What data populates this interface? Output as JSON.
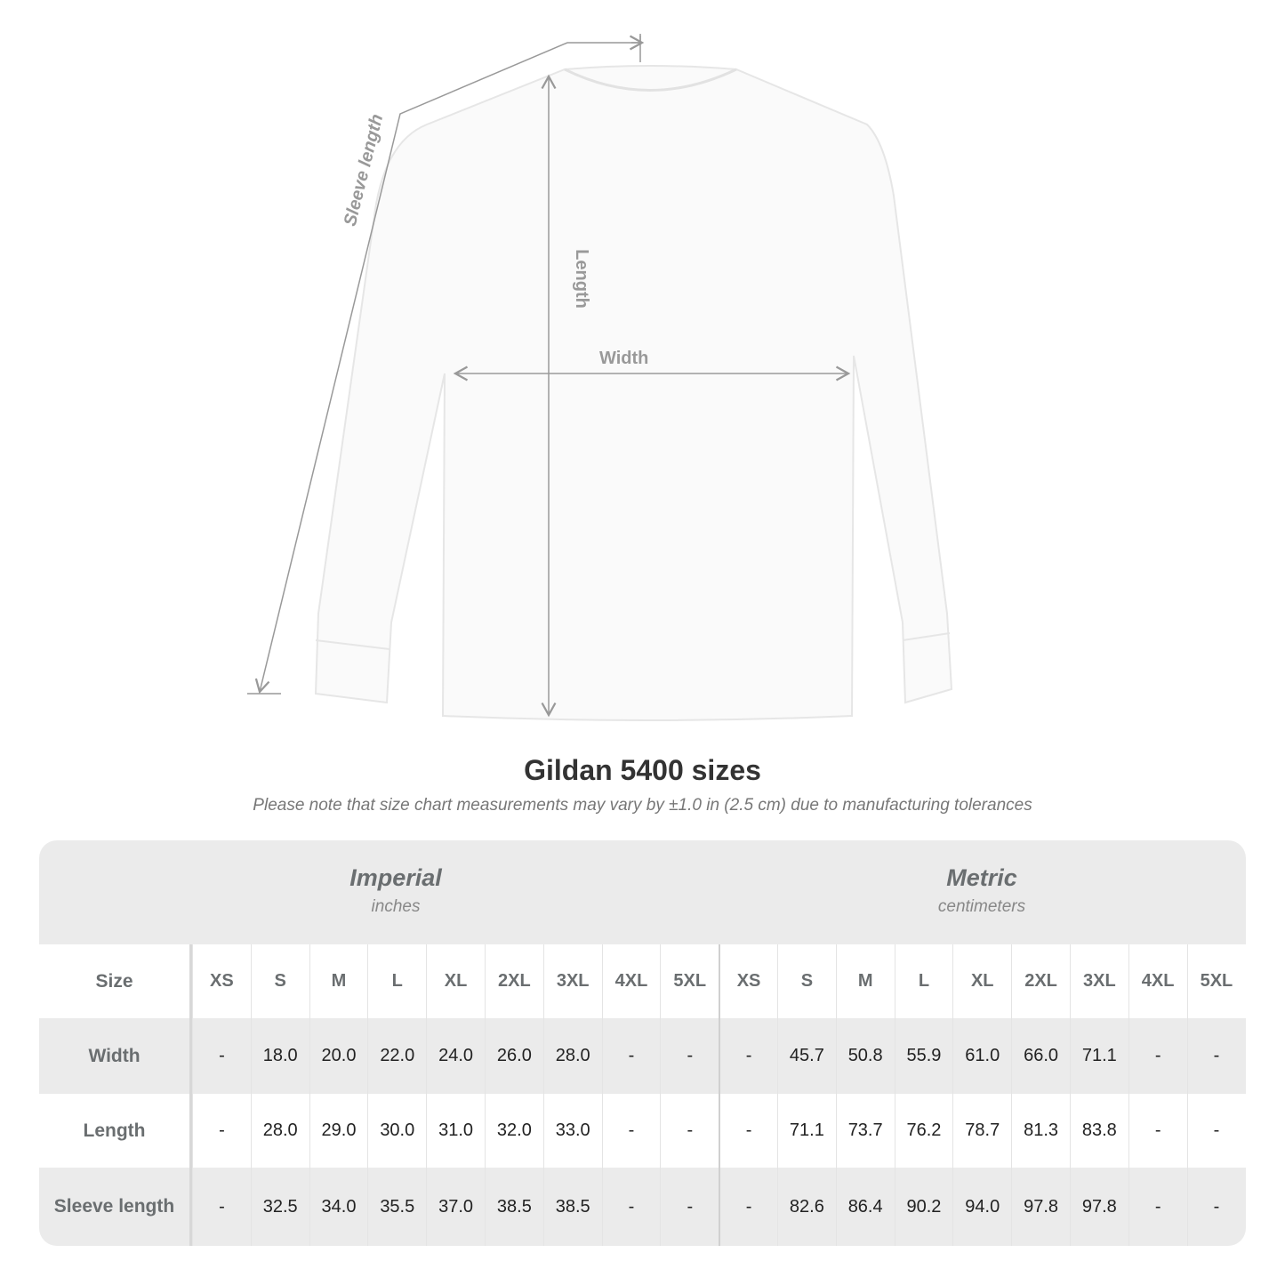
{
  "diagram": {
    "labels": {
      "sleeve": "Sleeve length",
      "length": "Length",
      "width": "Width"
    },
    "line_color": "#999999"
  },
  "title": "Gildan 5400 sizes",
  "note": "Please note that size chart measurements may vary by ±1.0 in (2.5 cm) due to manufacturing tolerances",
  "table": {
    "imperial": {
      "name": "Imperial",
      "unit": "inches"
    },
    "metric": {
      "name": "Metric",
      "unit": "centimeters"
    },
    "size_label": "Size",
    "sizes": [
      "XS",
      "S",
      "M",
      "L",
      "XL",
      "2XL",
      "3XL",
      "4XL",
      "5XL"
    ],
    "rows": [
      {
        "label": "Width",
        "imperial": [
          "-",
          "18.0",
          "20.0",
          "22.0",
          "24.0",
          "26.0",
          "28.0",
          "-",
          "-"
        ],
        "metric": [
          "-",
          "45.7",
          "50.8",
          "55.9",
          "61.0",
          "66.0",
          "71.1",
          "-",
          "-"
        ]
      },
      {
        "label": "Length",
        "imperial": [
          "-",
          "28.0",
          "29.0",
          "30.0",
          "31.0",
          "32.0",
          "33.0",
          "-",
          "-"
        ],
        "metric": [
          "-",
          "71.1",
          "73.7",
          "76.2",
          "78.7",
          "81.3",
          "83.8",
          "-",
          "-"
        ]
      },
      {
        "label": "Sleeve length",
        "imperial": [
          "-",
          "32.5",
          "34.0",
          "35.5",
          "37.0",
          "38.5",
          "38.5",
          "-",
          "-"
        ],
        "metric": [
          "-",
          "82.6",
          "86.4",
          "90.2",
          "94.0",
          "97.8",
          "97.8",
          "-",
          "-"
        ]
      }
    ]
  }
}
